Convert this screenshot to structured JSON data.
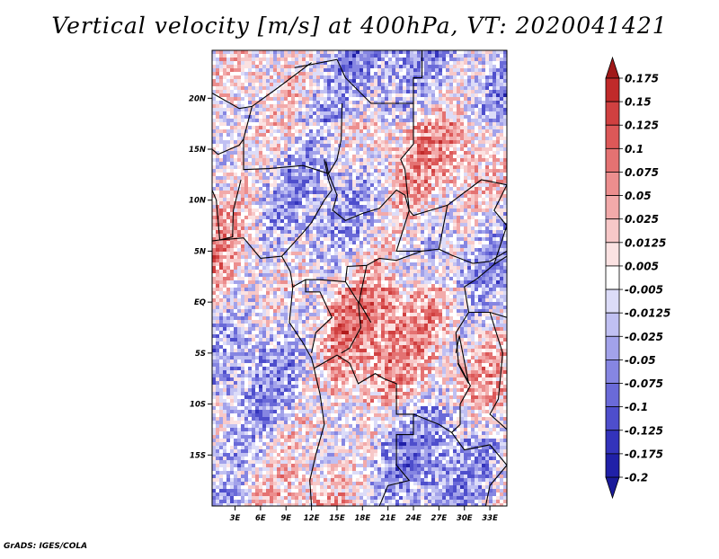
{
  "title": "Vertical velocity [m/s] at 400hPa, VT: 2020041421",
  "credit": "GrADS: IGES/COLA",
  "map": {
    "lat_labels": [
      {
        "value": 20,
        "label": "20N"
      },
      {
        "value": 15,
        "label": "15N"
      },
      {
        "value": 10,
        "label": "10N"
      },
      {
        "value": 5,
        "label": "5N"
      },
      {
        "value": 0,
        "label": "EQ"
      },
      {
        "value": -5,
        "label": "5S"
      },
      {
        "value": -10,
        "label": "10S"
      },
      {
        "value": -15,
        "label": "15S"
      }
    ],
    "lon_labels": [
      {
        "value": 3,
        "label": "3E"
      },
      {
        "value": 6,
        "label": "6E"
      },
      {
        "value": 9,
        "label": "9E"
      },
      {
        "value": 12,
        "label": "12E"
      },
      {
        "value": 15,
        "label": "15E"
      },
      {
        "value": 18,
        "label": "18E"
      },
      {
        "value": 21,
        "label": "21E"
      },
      {
        "value": 24,
        "label": "24E"
      },
      {
        "value": 27,
        "label": "27E"
      },
      {
        "value": 30,
        "label": "30E"
      },
      {
        "value": 33,
        "label": "33E"
      }
    ],
    "lon_range": [
      0.3,
      35.0
    ],
    "lat_range": [
      -20.0,
      24.7
    ]
  },
  "colorbar": {
    "levels": [
      {
        "label": "0.175",
        "color": "#b01c1c"
      },
      {
        "label": "0.15",
        "color": "#c02a2a"
      },
      {
        "label": "0.125",
        "color": "#d04040"
      },
      {
        "label": "0.1",
        "color": "#dc5858"
      },
      {
        "label": "0.075",
        "color": "#e47272"
      },
      {
        "label": "0.05",
        "color": "#ec8e8e"
      },
      {
        "label": "0.025",
        "color": "#f2aaaa"
      },
      {
        "label": "0.0125",
        "color": "#f7c8c8"
      },
      {
        "label": "0.005",
        "color": "#fbe2e2"
      },
      {
        "label": "-0.005",
        "color": "#ffffff"
      },
      {
        "label": "-0.0125",
        "color": "#dcdcf8"
      },
      {
        "label": "-0.025",
        "color": "#c0c0f2"
      },
      {
        "label": "-0.05",
        "color": "#a2a2ea"
      },
      {
        "label": "-0.075",
        "color": "#8686e2"
      },
      {
        "label": "-0.1",
        "color": "#6a6ad8"
      },
      {
        "label": "-0.125",
        "color": "#4e4ecc"
      },
      {
        "label": "-0.175",
        "color": "#3333bb"
      },
      {
        "label": "-0.2",
        "color": "#2020a8"
      }
    ],
    "top_color": "#a01818",
    "bottom_color": "#1a1a99"
  }
}
